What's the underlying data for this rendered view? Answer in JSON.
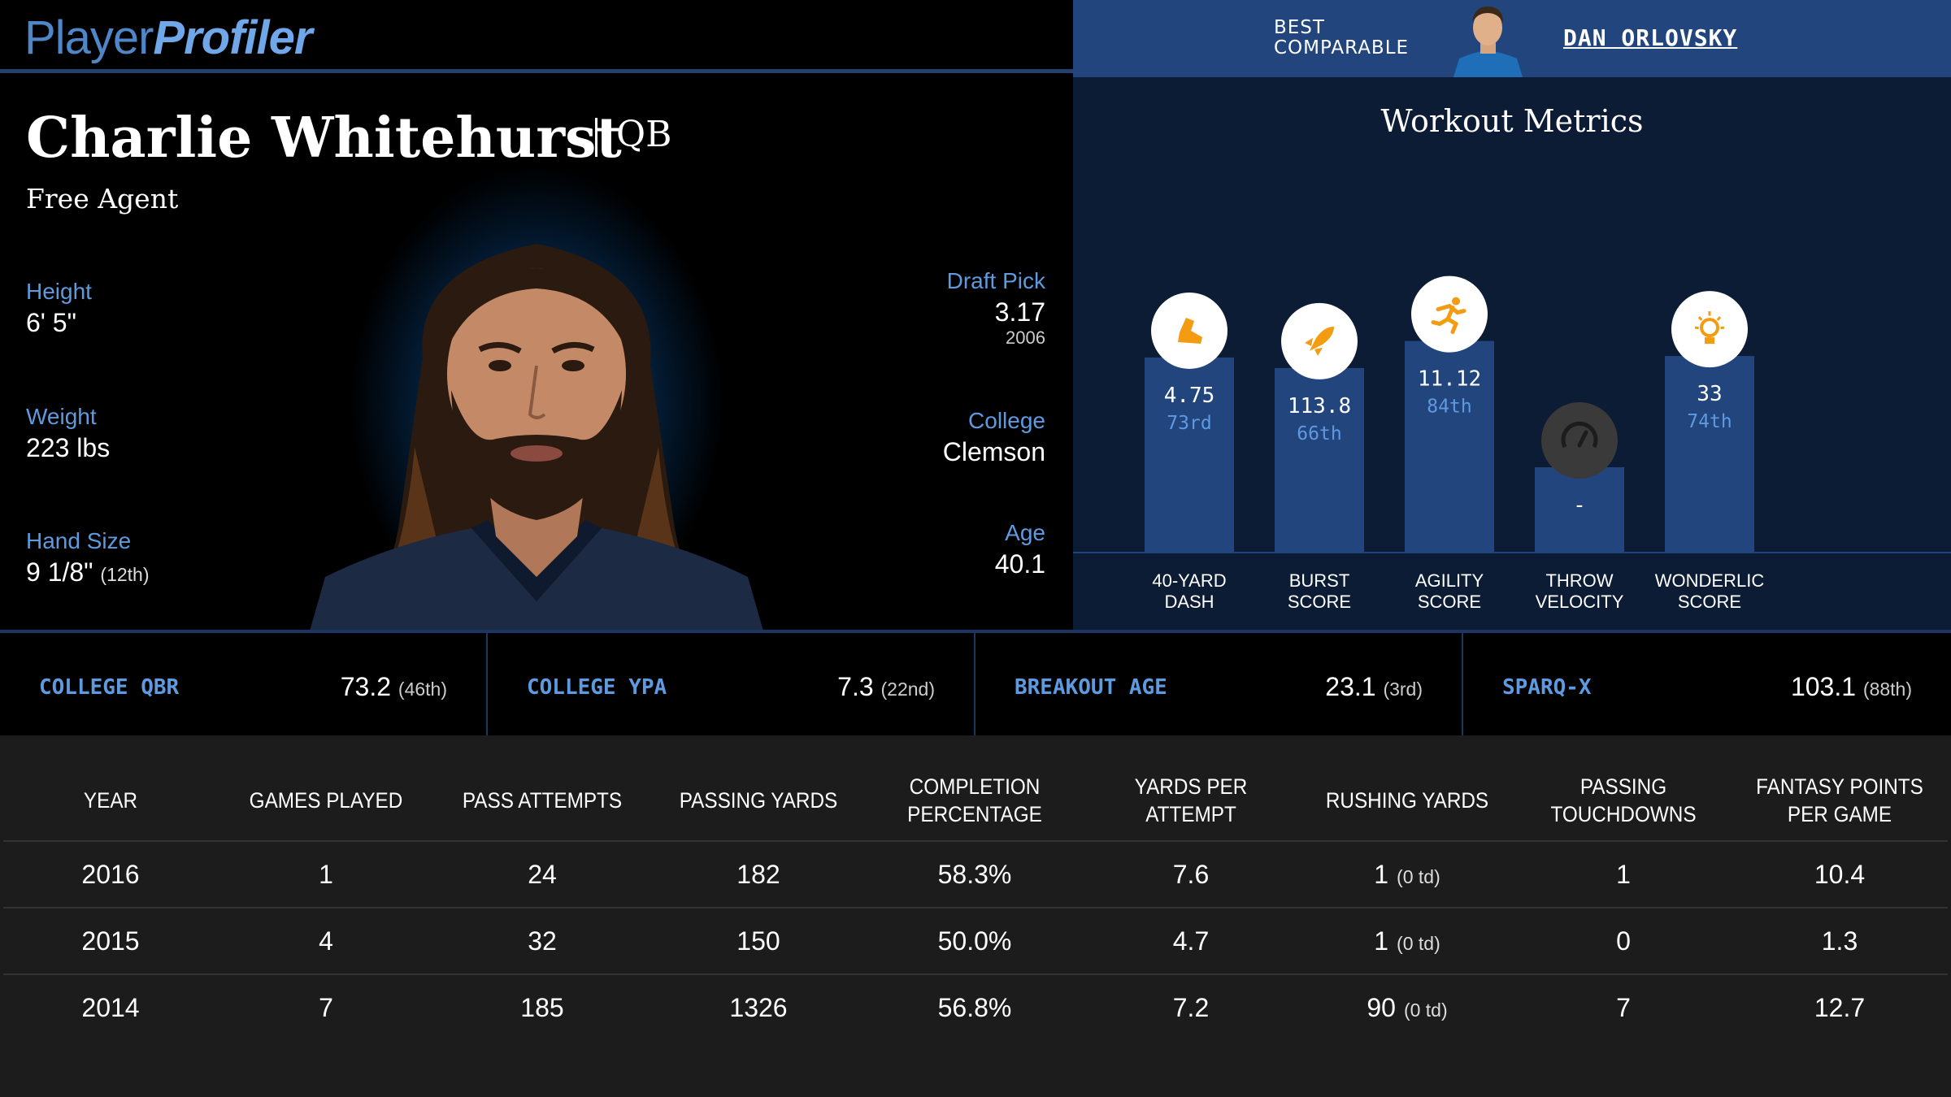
{
  "logo": {
    "part1": "Player",
    "part2": "Profiler"
  },
  "player": {
    "name": "Charlie Whitehurst",
    "position": "QB",
    "team": "Free Agent",
    "height_label": "Height",
    "height": "6' 5\"",
    "weight_label": "Weight",
    "weight": "223 lbs",
    "hand_label": "Hand Size",
    "hand": "9 1/8\"",
    "hand_rank": "(12th)",
    "draft_label": "Draft Pick",
    "draft": "3.17",
    "draft_year": "2006",
    "college_label": "College",
    "college": "Clemson",
    "age_label": "Age",
    "age": "40.1"
  },
  "comparable": {
    "label_line1": "BEST",
    "label_line2": "COMPARABLE",
    "name": "DAN ORLOVSKY"
  },
  "workout": {
    "title": "Workout Metrics"
  },
  "chart_data": {
    "type": "bar",
    "title": "Workout Metrics",
    "categories": [
      "40-YARD DASH",
      "BURST SCORE",
      "AGILITY SCORE",
      "THROW VELOCITY",
      "WONDERLIC SCORE"
    ],
    "labels": [
      [
        "40-YARD",
        "DASH"
      ],
      [
        "BURST",
        "SCORE"
      ],
      [
        "AGILITY",
        "SCORE"
      ],
      [
        "THROW",
        "VELOCITY"
      ],
      [
        "WONDERLIC",
        "SCORE"
      ]
    ],
    "values": [
      "4.75",
      "113.8",
      "11.12",
      "-",
      "33"
    ],
    "percentiles": [
      73,
      66,
      84,
      0,
      74
    ],
    "percentile_labels": [
      "73rd",
      "66th",
      "84th",
      "",
      "74th"
    ],
    "icons": [
      "shoe-icon",
      "rocket-icon",
      "runner-icon",
      "speedometer-icon",
      "lightbulb-icon"
    ],
    "ylim": [
      0,
      100
    ],
    "colors": {
      "bar": "#23457d",
      "icon_bg": "#ffffff",
      "icon": "#f39c12",
      "empty_icon_bg": "#3a3a3a"
    }
  },
  "metrics": [
    {
      "label": "COLLEGE QBR",
      "value": "73.2",
      "rank": "(46th)"
    },
    {
      "label": "COLLEGE YPA",
      "value": "7.3",
      "rank": "(22nd)"
    },
    {
      "label": "BREAKOUT AGE",
      "value": "23.1",
      "rank": "(3rd)"
    },
    {
      "label": "SPARQ-X",
      "value": "103.1",
      "rank": "(88th)"
    }
  ],
  "table": {
    "headers": [
      "YEAR",
      "GAMES PLAYED",
      "PASS ATTEMPTS",
      "PASSING YARDS",
      "COMPLETION PERCENTAGE",
      "YARDS PER ATTEMPT",
      "RUSHING YARDS",
      "PASSING TOUCHDOWNS",
      "FANTASY POINTS PER GAME"
    ],
    "rows": [
      {
        "year": "2016",
        "games": "1",
        "attempts": "24",
        "yards": "182",
        "comp": "58.3%",
        "ypa": "7.6",
        "rush": "1",
        "rush_td": "(0 td)",
        "td": "1",
        "fpts": "10.4"
      },
      {
        "year": "2015",
        "games": "4",
        "attempts": "32",
        "yards": "150",
        "comp": "50.0%",
        "ypa": "4.7",
        "rush": "1",
        "rush_td": "(0 td)",
        "td": "0",
        "fpts": "1.3"
      },
      {
        "year": "2014",
        "games": "7",
        "attempts": "185",
        "yards": "1326",
        "comp": "56.8%",
        "ypa": "7.2",
        "rush": "90",
        "rush_td": "(0 td)",
        "td": "7",
        "fpts": "12.7"
      }
    ]
  }
}
